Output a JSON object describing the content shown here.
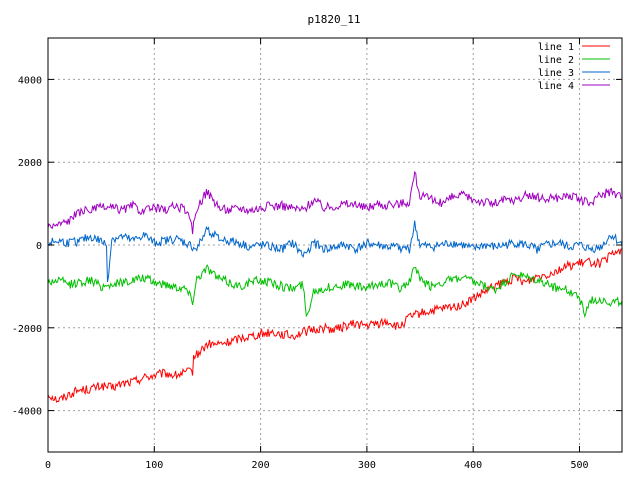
{
  "chart_data": {
    "type": "line",
    "title": "p1820_11",
    "xlabel": "",
    "ylabel": "",
    "xlim": [
      0,
      540
    ],
    "ylim": [
      -5000,
      5000
    ],
    "xticks": [
      0,
      100,
      200,
      300,
      400,
      500
    ],
    "yticks": [
      -4000,
      -2000,
      0,
      2000,
      4000
    ],
    "grid": true,
    "legend_position": "top-right",
    "series": [
      {
        "name": "line 1",
        "color": "#ff0000",
        "x": [
          0,
          10,
          20,
          30,
          40,
          50,
          60,
          70,
          80,
          90,
          100,
          110,
          120,
          130,
          136,
          137,
          140,
          150,
          160,
          170,
          180,
          190,
          200,
          210,
          220,
          230,
          240,
          250,
          260,
          270,
          280,
          290,
          300,
          310,
          320,
          330,
          340,
          350,
          360,
          370,
          380,
          390,
          400,
          410,
          420,
          430,
          440,
          450,
          460,
          470,
          480,
          490,
          500,
          510,
          520,
          530,
          540
        ],
        "y": [
          -3600,
          -3750,
          -3600,
          -3500,
          -3480,
          -3400,
          -3450,
          -3350,
          -3300,
          -3200,
          -3150,
          -3100,
          -3150,
          -3080,
          -3050,
          -2700,
          -2650,
          -2400,
          -2400,
          -2350,
          -2250,
          -2200,
          -2150,
          -2100,
          -2150,
          -2200,
          -2100,
          -2050,
          -2000,
          -2050,
          -1950,
          -1900,
          -1950,
          -1900,
          -1850,
          -2000,
          -1750,
          -1650,
          -1600,
          -1550,
          -1500,
          -1450,
          -1300,
          -1150,
          -1000,
          -900,
          -800,
          -900,
          -750,
          -700,
          -600,
          -500,
          -450,
          -400,
          -450,
          -250,
          -100
        ]
      },
      {
        "name": "line 2",
        "color": "#00c000",
        "x": [
          0,
          10,
          20,
          30,
          40,
          50,
          60,
          70,
          80,
          90,
          100,
          110,
          120,
          130,
          136,
          140,
          150,
          160,
          170,
          180,
          190,
          200,
          210,
          220,
          230,
          240,
          243,
          250,
          260,
          270,
          280,
          290,
          300,
          310,
          320,
          330,
          340,
          345,
          350,
          360,
          370,
          380,
          390,
          400,
          410,
          420,
          430,
          440,
          450,
          460,
          470,
          480,
          490,
          500,
          505,
          510,
          520,
          530,
          540
        ],
        "y": [
          -900,
          -850,
          -950,
          -900,
          -850,
          -1000,
          -950,
          -900,
          -850,
          -800,
          -900,
          -950,
          -1000,
          -1050,
          -1350,
          -800,
          -550,
          -800,
          -900,
          -1000,
          -900,
          -850,
          -900,
          -1000,
          -1050,
          -950,
          -1750,
          -1100,
          -1050,
          -1000,
          -950,
          -1000,
          -1050,
          -950,
          -900,
          -1050,
          -900,
          -500,
          -850,
          -1000,
          -900,
          -850,
          -800,
          -900,
          -1000,
          -1100,
          -900,
          -700,
          -800,
          -850,
          -950,
          -1050,
          -1100,
          -1250,
          -1700,
          -1350,
          -1300,
          -1400,
          -1350
        ]
      },
      {
        "name": "line 3",
        "color": "#0066cc",
        "x": [
          0,
          10,
          20,
          30,
          40,
          50,
          55,
          56,
          60,
          70,
          80,
          90,
          100,
          110,
          120,
          130,
          140,
          150,
          160,
          170,
          180,
          190,
          200,
          210,
          220,
          230,
          240,
          250,
          260,
          270,
          280,
          290,
          300,
          310,
          320,
          330,
          340,
          345,
          350,
          360,
          370,
          380,
          390,
          400,
          410,
          420,
          430,
          440,
          450,
          460,
          470,
          480,
          490,
          500,
          510,
          520,
          530,
          540
        ],
        "y": [
          50,
          100,
          50,
          100,
          200,
          100,
          0,
          -900,
          150,
          200,
          100,
          250,
          50,
          100,
          150,
          50,
          -100,
          400,
          150,
          100,
          50,
          -50,
          0,
          -50,
          -100,
          50,
          -250,
          50,
          -100,
          -50,
          0,
          -100,
          50,
          0,
          -50,
          -50,
          -100,
          500,
          0,
          -50,
          0,
          50,
          0,
          -100,
          0,
          -50,
          0,
          50,
          0,
          -100,
          0,
          50,
          -50,
          0,
          -100,
          -50,
          250,
          0
        ]
      },
      {
        "name": "line 4",
        "color": "#a000c0",
        "x": [
          0,
          10,
          20,
          30,
          40,
          50,
          60,
          70,
          80,
          90,
          100,
          110,
          120,
          130,
          136,
          140,
          150,
          160,
          170,
          180,
          190,
          200,
          210,
          220,
          230,
          240,
          250,
          260,
          270,
          280,
          290,
          300,
          310,
          320,
          330,
          340,
          345,
          350,
          360,
          370,
          380,
          390,
          400,
          410,
          420,
          430,
          440,
          450,
          460,
          470,
          480,
          490,
          500,
          510,
          520,
          530,
          540
        ],
        "y": [
          450,
          500,
          600,
          800,
          850,
          900,
          900,
          850,
          950,
          800,
          900,
          850,
          950,
          850,
          350,
          900,
          1300,
          900,
          850,
          900,
          850,
          900,
          950,
          950,
          900,
          850,
          1100,
          900,
          950,
          1000,
          950,
          900,
          1000,
          950,
          1000,
          1050,
          1750,
          1200,
          1100,
          1000,
          1150,
          1200,
          1100,
          1050,
          1000,
          1100,
          1050,
          1200,
          1150,
          1100,
          1150,
          1200,
          1100,
          1000,
          1200,
          1300,
          1150
        ]
      }
    ]
  }
}
